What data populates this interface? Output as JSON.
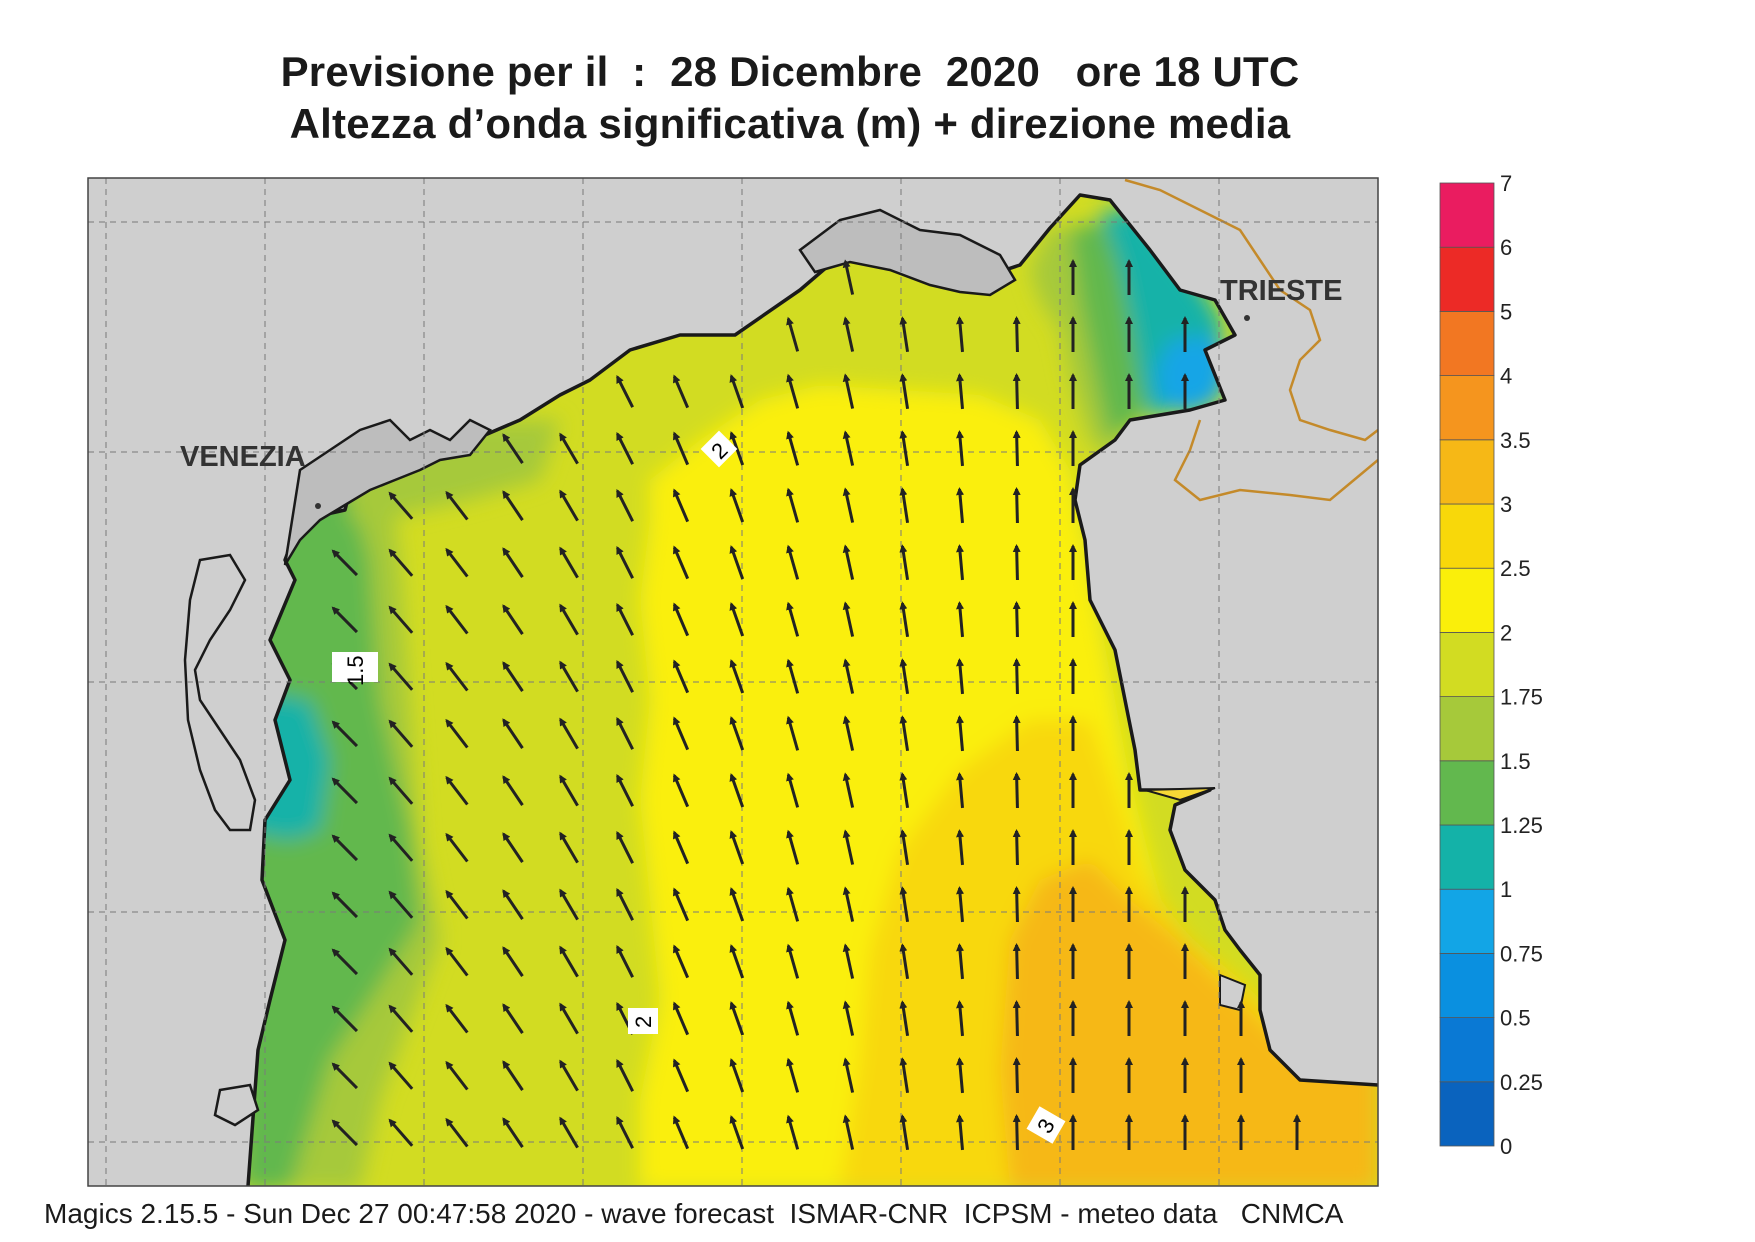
{
  "header": {
    "title_line1": "Previsione per il  :  28 Dicembre  2020   ore 18 UTC",
    "title_line2": "Altezza d’onda significativa (m) + direzione media"
  },
  "map": {
    "cities": [
      {
        "name": "VENEZIA",
        "id": "venezia"
      },
      {
        "name": "TRIESTE",
        "id": "trieste"
      }
    ],
    "contour_labels": [
      "2",
      "1.5",
      "2",
      "3"
    ],
    "colors": {
      "land": "#cfcfcf",
      "coast": "#1a1a1a",
      "border": "#c48a2a",
      "arrow": "#222222"
    }
  },
  "legend": {
    "unit": "m",
    "levels": [
      "0",
      "0.25",
      "0.5",
      "0.75",
      "1",
      "1.25",
      "1.5",
      "1.75",
      "2",
      "2.5",
      "3",
      "3.5",
      "4",
      "5",
      "6",
      "7"
    ],
    "colors": [
      "#0a63be",
      "#0a79d4",
      "#0a90e0",
      "#12a5e6",
      "#14b2a8",
      "#62b84e",
      "#a6c93a",
      "#d2dc22",
      "#faef0a",
      "#f8d80a",
      "#f6b816",
      "#f5951e",
      "#f27722",
      "#ec2a26",
      "#ea1c60"
    ]
  },
  "footer": {
    "text": "Magics 2.15.5 - Sun Dec 27 00:47:58 2020 - wave forecast  ISMAR-CNR  ICPSM - meteo data   CNMCA"
  }
}
